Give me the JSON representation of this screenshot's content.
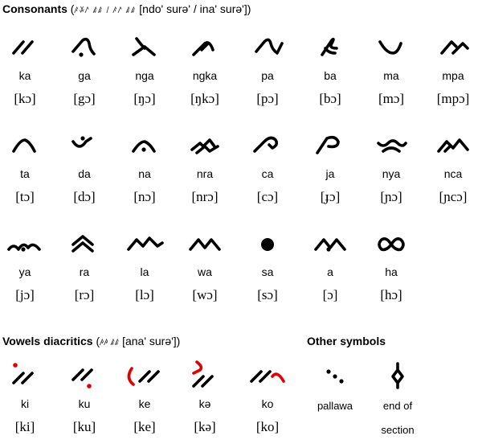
{
  "title": {
    "label": "Consonants",
    "open": " (",
    "script_text": "ꤰꤸꤱ ꤹꤹ / ꤰꤱ ꤹꤹ",
    "romanized": " [ndo' surə' / ina' surə'])"
  },
  "consonants": [
    {
      "name": "ka",
      "ipa": "[kɔ]",
      "glyph": "ka-glyph"
    },
    {
      "name": "ga",
      "ipa": "[gɔ]",
      "glyph": "ga-glyph"
    },
    {
      "name": "nga",
      "ipa": "[ŋɔ]",
      "glyph": "nga-glyph"
    },
    {
      "name": "ngka",
      "ipa": "[ŋkɔ]",
      "glyph": "ngka-glyph"
    },
    {
      "name": "pa",
      "ipa": "[pɔ]",
      "glyph": "pa-glyph"
    },
    {
      "name": "ba",
      "ipa": "[bɔ]",
      "glyph": "ba-glyph"
    },
    {
      "name": "ma",
      "ipa": "[mɔ]",
      "glyph": "ma-glyph"
    },
    {
      "name": "mpa",
      "ipa": "[mpɔ]",
      "glyph": "mpa-glyph"
    },
    {
      "name": "ta",
      "ipa": "[tɔ]",
      "glyph": "ta-glyph"
    },
    {
      "name": "da",
      "ipa": "[dɔ]",
      "glyph": "da-glyph"
    },
    {
      "name": "na",
      "ipa": "[nɔ]",
      "glyph": "na-glyph"
    },
    {
      "name": "nra",
      "ipa": "[nrɔ]",
      "glyph": "nra-glyph"
    },
    {
      "name": "ca",
      "ipa": "[cɔ]",
      "glyph": "ca-glyph"
    },
    {
      "name": "ja",
      "ipa": "[ɟɔ]",
      "glyph": "ja-glyph"
    },
    {
      "name": "nya",
      "ipa": "[ɲɔ]",
      "glyph": "nya-glyph"
    },
    {
      "name": "nca",
      "ipa": "[ɲcɔ]",
      "glyph": "nca-glyph"
    },
    {
      "name": "ya",
      "ipa": "[jɔ]",
      "glyph": "ya-glyph"
    },
    {
      "name": "ra",
      "ipa": "[rɔ]",
      "glyph": "ra-glyph"
    },
    {
      "name": "la",
      "ipa": "[lɔ]",
      "glyph": "la-glyph"
    },
    {
      "name": "wa",
      "ipa": "[wɔ]",
      "glyph": "wa-glyph"
    },
    {
      "name": "sa",
      "ipa": "[sɔ]",
      "glyph": "sa-glyph"
    },
    {
      "name": "a",
      "ipa": "[ɔ]",
      "glyph": "a-glyph"
    },
    {
      "name": "ha",
      "ipa": "[hɔ]",
      "glyph": "ha-glyph"
    }
  ],
  "vowels_heading": {
    "label": "Vowels diacritics",
    "open": " (",
    "script_text": "ꤳꤳ ꤹꤹ",
    "romanized": " [ana' surə'])"
  },
  "vowels": [
    {
      "name": "ki",
      "ipa": "[ki]",
      "glyph": "ki-glyph"
    },
    {
      "name": "ku",
      "ipa": "[ku]",
      "glyph": "ku-glyph"
    },
    {
      "name": "ke",
      "ipa": "[ke]",
      "glyph": "ke-glyph"
    },
    {
      "name": "kə",
      "ipa": "[kə]",
      "glyph": "ke-schwa-glyph"
    },
    {
      "name": "ko",
      "ipa": "[ko]",
      "glyph": "ko-glyph"
    }
  ],
  "other_symbols_heading": "Other symbols",
  "other_symbols": [
    {
      "name": "pallawa",
      "glyph": "pallawa-glyph"
    },
    {
      "name": "end of section",
      "glyph": "end-of-section-glyph"
    }
  ],
  "colors": {
    "text": "#000000",
    "diacritic": "#e00000"
  }
}
